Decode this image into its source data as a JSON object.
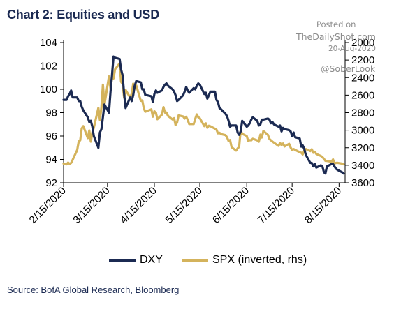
{
  "chart_data": {
    "type": "line",
    "title": "Chart 2: Equities and USD",
    "source": "Source: BofA Global Research, Bloomberg",
    "watermark": {
      "posted": "Posted on",
      "site": "TheDailyShot.com",
      "date": "20-Aug-2020",
      "handle": "@SoberLook"
    },
    "x_ticks": [
      "2/15/2020",
      "3/15/2020",
      "4/15/2020",
      "5/15/2020",
      "6/15/2020",
      "7/15/2020",
      "8/15/2020"
    ],
    "xlim": [
      "2020-02-15",
      "2020-08-19"
    ],
    "y_left": {
      "ylim": [
        92,
        104
      ],
      "ticks": [
        "92",
        "94",
        "96",
        "98",
        "100",
        "102",
        "104"
      ]
    },
    "y_right": {
      "ylim": [
        2000,
        3600
      ],
      "inverted": true,
      "ticks": [
        "2000",
        "2200",
        "2400",
        "2600",
        "2800",
        "3000",
        "3200",
        "3400",
        "3600"
      ]
    },
    "grid": false,
    "legend_position": "bottom",
    "series": [
      {
        "name": "DXY",
        "axis": "left",
        "color": "#1b2a52",
        "points": [
          [
            "2020-02-15",
            99.1
          ],
          [
            "2020-02-17",
            99.1
          ],
          [
            "2020-02-18",
            99.4
          ],
          [
            "2020-02-19",
            99.6
          ],
          [
            "2020-02-20",
            99.9
          ],
          [
            "2020-02-21",
            99.3
          ],
          [
            "2020-02-24",
            99.3
          ],
          [
            "2020-02-25",
            99.0
          ],
          [
            "2020-02-26",
            99.0
          ],
          [
            "2020-02-27",
            98.5
          ],
          [
            "2020-02-28",
            98.2
          ],
          [
            "2020-03-02",
            97.6
          ],
          [
            "2020-03-03",
            97.2
          ],
          [
            "2020-03-04",
            97.3
          ],
          [
            "2020-03-05",
            96.8
          ],
          [
            "2020-03-06",
            96.0
          ],
          [
            "2020-03-09",
            95.0
          ],
          [
            "2020-03-10",
            96.3
          ],
          [
            "2020-03-11",
            96.6
          ],
          [
            "2020-03-12",
            97.6
          ],
          [
            "2020-03-13",
            98.7
          ],
          [
            "2020-03-16",
            98.0
          ],
          [
            "2020-03-17",
            99.8
          ],
          [
            "2020-03-18",
            101.2
          ],
          [
            "2020-03-19",
            102.8
          ],
          [
            "2020-03-20",
            102.7
          ],
          [
            "2020-03-23",
            102.6
          ],
          [
            "2020-03-24",
            101.7
          ],
          [
            "2020-03-25",
            101.2
          ],
          [
            "2020-03-26",
            99.6
          ],
          [
            "2020-03-27",
            98.4
          ],
          [
            "2020-03-30",
            99.3
          ],
          [
            "2020-03-31",
            99.0
          ],
          [
            "2020-04-01",
            99.5
          ],
          [
            "2020-04-02",
            100.3
          ],
          [
            "2020-04-03",
            100.7
          ],
          [
            "2020-04-06",
            100.6
          ],
          [
            "2020-04-07",
            100.0
          ],
          [
            "2020-04-08",
            100.0
          ],
          [
            "2020-04-09",
            99.5
          ],
          [
            "2020-04-10",
            99.5
          ],
          [
            "2020-04-13",
            99.4
          ],
          [
            "2020-04-14",
            98.9
          ],
          [
            "2020-04-15",
            99.6
          ],
          [
            "2020-04-16",
            99.9
          ],
          [
            "2020-04-17",
            99.7
          ],
          [
            "2020-04-20",
            99.9
          ],
          [
            "2020-04-21",
            100.2
          ],
          [
            "2020-04-22",
            100.4
          ],
          [
            "2020-04-23",
            100.5
          ],
          [
            "2020-04-24",
            100.3
          ],
          [
            "2020-04-27",
            100.0
          ],
          [
            "2020-04-28",
            99.8
          ],
          [
            "2020-04-29",
            99.5
          ],
          [
            "2020-04-30",
            99.0
          ],
          [
            "2020-05-01",
            99.1
          ],
          [
            "2020-05-04",
            99.5
          ],
          [
            "2020-05-05",
            99.8
          ],
          [
            "2020-05-06",
            100.2
          ],
          [
            "2020-05-07",
            99.9
          ],
          [
            "2020-05-08",
            99.7
          ],
          [
            "2020-05-11",
            100.1
          ],
          [
            "2020-05-12",
            100.0
          ],
          [
            "2020-05-13",
            100.3
          ],
          [
            "2020-05-14",
            100.5
          ],
          [
            "2020-05-15",
            100.4
          ],
          [
            "2020-05-18",
            99.6
          ],
          [
            "2020-05-19",
            99.7
          ],
          [
            "2020-05-20",
            99.2
          ],
          [
            "2020-05-21",
            99.5
          ],
          [
            "2020-05-22",
            99.8
          ],
          [
            "2020-05-25",
            99.8
          ],
          [
            "2020-05-26",
            99.1
          ],
          [
            "2020-05-27",
            98.9
          ],
          [
            "2020-05-28",
            98.4
          ],
          [
            "2020-05-29",
            98.3
          ],
          [
            "2020-06-01",
            97.9
          ],
          [
            "2020-06-02",
            97.7
          ],
          [
            "2020-06-03",
            97.3
          ],
          [
            "2020-06-04",
            96.8
          ],
          [
            "2020-06-05",
            96.9
          ],
          [
            "2020-06-08",
            96.9
          ],
          [
            "2020-06-09",
            96.3
          ],
          [
            "2020-06-10",
            96.1
          ],
          [
            "2020-06-11",
            96.4
          ],
          [
            "2020-06-12",
            97.3
          ],
          [
            "2020-06-15",
            96.8
          ],
          [
            "2020-06-16",
            96.9
          ],
          [
            "2020-06-17",
            97.1
          ],
          [
            "2020-06-18",
            97.4
          ],
          [
            "2020-06-19",
            97.6
          ],
          [
            "2020-06-22",
            97.3
          ],
          [
            "2020-06-23",
            96.9
          ],
          [
            "2020-06-24",
            97.0
          ],
          [
            "2020-06-25",
            97.4
          ],
          [
            "2020-06-26",
            97.4
          ],
          [
            "2020-06-29",
            97.5
          ],
          [
            "2020-06-30",
            97.4
          ],
          [
            "2020-07-01",
            97.1
          ],
          [
            "2020-07-02",
            97.2
          ],
          [
            "2020-07-03",
            97.0
          ],
          [
            "2020-07-06",
            96.8
          ],
          [
            "2020-07-07",
            96.9
          ],
          [
            "2020-07-08",
            96.4
          ],
          [
            "2020-07-09",
            96.7
          ],
          [
            "2020-07-10",
            96.6
          ],
          [
            "2020-07-13",
            96.5
          ],
          [
            "2020-07-14",
            96.4
          ],
          [
            "2020-07-15",
            96.0
          ],
          [
            "2020-07-16",
            96.3
          ],
          [
            "2020-07-17",
            95.9
          ],
          [
            "2020-07-20",
            95.8
          ],
          [
            "2020-07-21",
            95.1
          ],
          [
            "2020-07-22",
            95.2
          ],
          [
            "2020-07-23",
            94.9
          ],
          [
            "2020-07-24",
            94.4
          ],
          [
            "2020-07-27",
            93.7
          ],
          [
            "2020-07-28",
            93.7
          ],
          [
            "2020-07-29",
            93.4
          ],
          [
            "2020-07-30",
            93.6
          ],
          [
            "2020-07-31",
            93.3
          ],
          [
            "2020-08-03",
            93.5
          ],
          [
            "2020-08-04",
            93.4
          ],
          [
            "2020-08-05",
            92.9
          ],
          [
            "2020-08-06",
            92.8
          ],
          [
            "2020-08-07",
            93.4
          ],
          [
            "2020-08-10",
            93.6
          ],
          [
            "2020-08-11",
            93.6
          ],
          [
            "2020-08-12",
            93.4
          ],
          [
            "2020-08-13",
            93.2
          ],
          [
            "2020-08-14",
            93.1
          ],
          [
            "2020-08-17",
            92.9
          ],
          [
            "2020-08-18",
            92.8
          ]
        ]
      },
      {
        "name": "SPX (inverted, rhs)",
        "axis": "right",
        "color": "#d4b35c",
        "points": [
          [
            "2020-02-15",
            3380
          ],
          [
            "2020-02-17",
            3390
          ],
          [
            "2020-02-18",
            3370
          ],
          [
            "2020-02-19",
            3386
          ],
          [
            "2020-02-20",
            3373
          ],
          [
            "2020-02-21",
            3338
          ],
          [
            "2020-02-24",
            3225
          ],
          [
            "2020-02-25",
            3128
          ],
          [
            "2020-02-26",
            3116
          ],
          [
            "2020-02-27",
            2979
          ],
          [
            "2020-02-28",
            2954
          ],
          [
            "2020-03-02",
            3090
          ],
          [
            "2020-03-03",
            3003
          ],
          [
            "2020-03-04",
            3130
          ],
          [
            "2020-03-05",
            3023
          ],
          [
            "2020-03-06",
            2972
          ],
          [
            "2020-03-09",
            2746
          ],
          [
            "2020-03-10",
            2882
          ],
          [
            "2020-03-11",
            2741
          ],
          [
            "2020-03-12",
            2480
          ],
          [
            "2020-03-13",
            2711
          ],
          [
            "2020-03-16",
            2386
          ],
          [
            "2020-03-17",
            2529
          ],
          [
            "2020-03-18",
            2398
          ],
          [
            "2020-03-19",
            2409
          ],
          [
            "2020-03-20",
            2305
          ],
          [
            "2020-03-23",
            2237
          ],
          [
            "2020-03-24",
            2447
          ],
          [
            "2020-03-25",
            2475
          ],
          [
            "2020-03-26",
            2630
          ],
          [
            "2020-03-27",
            2541
          ],
          [
            "2020-03-30",
            2627
          ],
          [
            "2020-03-31",
            2585
          ],
          [
            "2020-04-01",
            2470
          ],
          [
            "2020-04-02",
            2527
          ],
          [
            "2020-04-03",
            2489
          ],
          [
            "2020-04-06",
            2664
          ],
          [
            "2020-04-07",
            2660
          ],
          [
            "2020-04-08",
            2750
          ],
          [
            "2020-04-09",
            2790
          ],
          [
            "2020-04-13",
            2762
          ],
          [
            "2020-04-14",
            2846
          ],
          [
            "2020-04-15",
            2784
          ],
          [
            "2020-04-16",
            2800
          ],
          [
            "2020-04-17",
            2875
          ],
          [
            "2020-04-20",
            2823
          ],
          [
            "2020-04-21",
            2737
          ],
          [
            "2020-04-22",
            2800
          ],
          [
            "2020-04-23",
            2798
          ],
          [
            "2020-04-24",
            2837
          ],
          [
            "2020-04-27",
            2878
          ],
          [
            "2020-04-28",
            2863
          ],
          [
            "2020-04-29",
            2940
          ],
          [
            "2020-04-30",
            2912
          ],
          [
            "2020-05-01",
            2831
          ],
          [
            "2020-05-04",
            2843
          ],
          [
            "2020-05-05",
            2868
          ],
          [
            "2020-05-06",
            2848
          ],
          [
            "2020-05-07",
            2882
          ],
          [
            "2020-05-08",
            2930
          ],
          [
            "2020-05-11",
            2930
          ],
          [
            "2020-05-12",
            2870
          ],
          [
            "2020-05-13",
            2820
          ],
          [
            "2020-05-14",
            2852
          ],
          [
            "2020-05-15",
            2864
          ],
          [
            "2020-05-18",
            2954
          ],
          [
            "2020-05-19",
            2922
          ],
          [
            "2020-05-20",
            2972
          ],
          [
            "2020-05-21",
            2949
          ],
          [
            "2020-05-22",
            2955
          ],
          [
            "2020-05-26",
            2992
          ],
          [
            "2020-05-27",
            3036
          ],
          [
            "2020-05-28",
            3030
          ],
          [
            "2020-05-29",
            3044
          ],
          [
            "2020-06-01",
            3056
          ],
          [
            "2020-06-02",
            3081
          ],
          [
            "2020-06-03",
            3123
          ],
          [
            "2020-06-04",
            3112
          ],
          [
            "2020-06-05",
            3194
          ],
          [
            "2020-06-08",
            3232
          ],
          [
            "2020-06-09",
            3207
          ],
          [
            "2020-06-10",
            3190
          ],
          [
            "2020-06-11",
            3002
          ],
          [
            "2020-06-12",
            3041
          ],
          [
            "2020-06-15",
            3067
          ],
          [
            "2020-06-16",
            3124
          ],
          [
            "2020-06-17",
            3113
          ],
          [
            "2020-06-18",
            3116
          ],
          [
            "2020-06-19",
            3098
          ],
          [
            "2020-06-22",
            3117
          ],
          [
            "2020-06-23",
            3131
          ],
          [
            "2020-06-24",
            3050
          ],
          [
            "2020-06-25",
            3083
          ],
          [
            "2020-06-26",
            3009
          ],
          [
            "2020-06-29",
            3053
          ],
          [
            "2020-06-30",
            3100
          ],
          [
            "2020-07-01",
            3115
          ],
          [
            "2020-07-02",
            3130
          ],
          [
            "2020-07-06",
            3179
          ],
          [
            "2020-07-07",
            3145
          ],
          [
            "2020-07-08",
            3169
          ],
          [
            "2020-07-09",
            3152
          ],
          [
            "2020-07-10",
            3185
          ],
          [
            "2020-07-13",
            3155
          ],
          [
            "2020-07-14",
            3197
          ],
          [
            "2020-07-15",
            3226
          ],
          [
            "2020-07-16",
            3215
          ],
          [
            "2020-07-17",
            3224
          ],
          [
            "2020-07-20",
            3251
          ],
          [
            "2020-07-21",
            3257
          ],
          [
            "2020-07-22",
            3276
          ],
          [
            "2020-07-23",
            3235
          ],
          [
            "2020-07-24",
            3215
          ],
          [
            "2020-07-27",
            3239
          ],
          [
            "2020-07-28",
            3218
          ],
          [
            "2020-07-29",
            3258
          ],
          [
            "2020-07-30",
            3246
          ],
          [
            "2020-07-31",
            3271
          ],
          [
            "2020-08-03",
            3294
          ],
          [
            "2020-08-04",
            3306
          ],
          [
            "2020-08-05",
            3327
          ],
          [
            "2020-08-06",
            3349
          ],
          [
            "2020-08-07",
            3351
          ],
          [
            "2020-08-10",
            3360
          ],
          [
            "2020-08-11",
            3333
          ],
          [
            "2020-08-12",
            3380
          ],
          [
            "2020-08-13",
            3373
          ],
          [
            "2020-08-14",
            3372
          ],
          [
            "2020-08-17",
            3381
          ],
          [
            "2020-08-18",
            3389
          ]
        ]
      }
    ]
  }
}
